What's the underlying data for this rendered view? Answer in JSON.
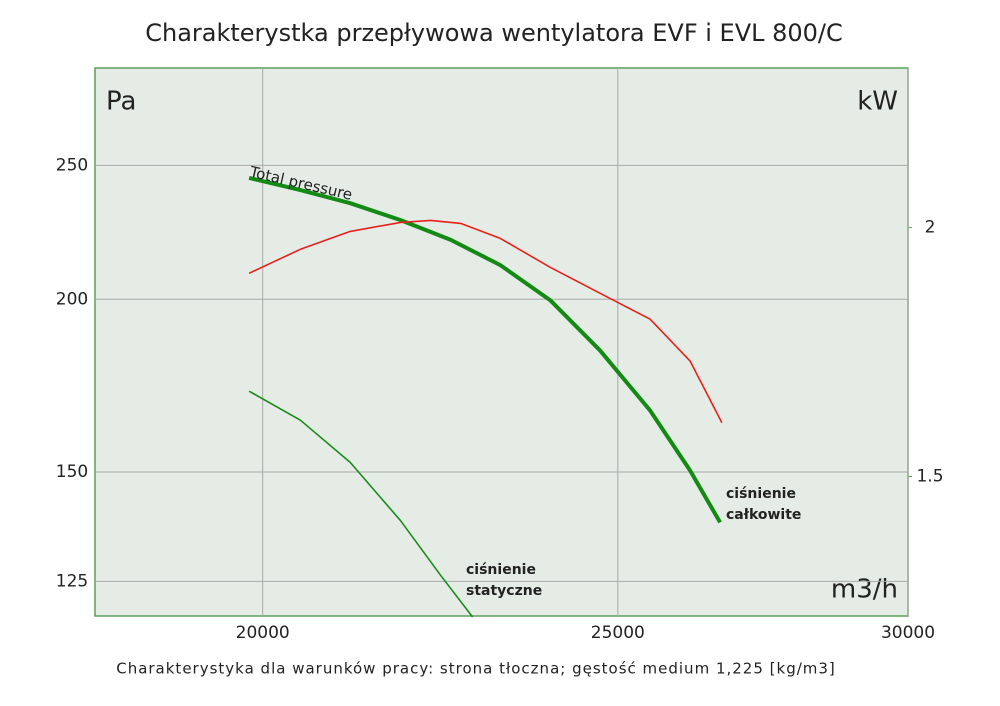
{
  "chart_data": {
    "type": "line",
    "title": "Charakterystka przepływowa wentylatora EVF i EVL 800/C",
    "subtitle": "Charakterystyka dla warunków pracy: strona tłoczna; gęstość medium 1,225 [kg/m3]",
    "y_label": "Pa",
    "y2_label": "kW",
    "x_label": "m3/h",
    "xscale": "log",
    "yscale": "log",
    "grid": true,
    "xlim": [
      18000,
      30000
    ],
    "xticks": [
      20000,
      25000,
      30000
    ],
    "ylim": [
      118,
      294
    ],
    "yticks": [
      125,
      150,
      200,
      250
    ],
    "y2lim": [
      1.22,
      2.32
    ],
    "y2ticks": [
      1.5,
      2
    ],
    "series": [
      {
        "color": "#138a13",
        "width": 4,
        "x": [
          19830,
          20480,
          21130,
          21810,
          22510,
          23220,
          23960,
          24720,
          25510,
          26160,
          26660
        ],
        "values": [
          244.8,
          239.9,
          234.7,
          228.2,
          220.8,
          211.7,
          199.7,
          183.7,
          166.2,
          150.4,
          137.9
        ]
      },
      {
        "color": "#1a8c1a",
        "width": 1.6,
        "x": [
          19830,
          20480,
          21130,
          21810,
          22370,
          22820
        ],
        "values": [
          171.6,
          163.5,
          152.4,
          138.3,
          126.2,
          117.8
        ]
      },
      {
        "color": "#e8221b",
        "width": 1.6,
        "axis": "y2",
        "x": [
          19830,
          20480,
          21130,
          21810,
          22230,
          22650,
          23220,
          23960,
          24720,
          25510,
          26160,
          26690
        ],
        "values": [
          1.908,
          1.956,
          1.992,
          2.01,
          2.014,
          2.008,
          1.978,
          1.92,
          1.868,
          1.816,
          1.732,
          1.608
        ]
      }
    ],
    "annotations": [
      {
        "lines": [
          "Total pressure"
        ]
      },
      {
        "lines": [
          "ciśnienie",
          "całkowite"
        ]
      },
      {
        "lines": [
          "ciśnienie",
          "statyczne"
        ]
      }
    ]
  }
}
